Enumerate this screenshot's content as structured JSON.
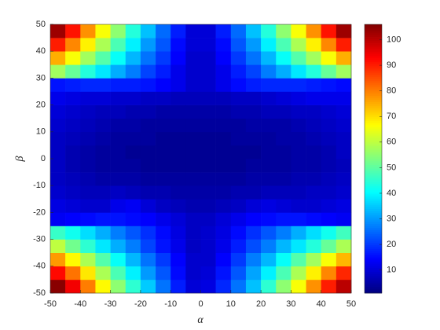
{
  "chart_data": {
    "type": "heatmap",
    "xlabel": "α",
    "ylabel": "β",
    "x": [
      -47.5,
      -42.5,
      -37.5,
      -32.5,
      -27.5,
      -22.5,
      -17.5,
      -12.5,
      -7.5,
      -2.5,
      2.5,
      7.5,
      12.5,
      17.5,
      22.5,
      27.5,
      32.5,
      37.5,
      42.5,
      47.5
    ],
    "y": [
      -47.5,
      -42.5,
      -37.5,
      -32.5,
      -27.5,
      -22.5,
      -17.5,
      -12.5,
      -7.5,
      -2.5,
      2.5,
      7.5,
      12.5,
      17.5,
      22.5,
      27.5,
      32.5,
      37.5,
      42.5,
      47.5
    ],
    "z": [
      [
        105,
        94,
        80,
        67,
        55,
        45,
        35,
        26,
        17,
        10,
        11,
        18,
        26,
        34,
        45,
        55,
        66,
        78,
        90,
        100
      ],
      [
        92,
        81,
        69,
        58,
        48,
        39,
        30,
        23,
        15,
        9,
        10,
        16,
        23,
        31,
        39,
        48,
        58,
        68,
        79,
        89
      ],
      [
        77,
        67,
        58,
        49,
        41,
        33,
        26,
        20,
        14,
        9,
        9,
        14,
        20,
        27,
        33,
        41,
        49,
        57,
        66,
        74
      ],
      [
        60,
        52,
        45,
        38,
        32,
        27,
        21,
        16,
        12,
        8,
        9,
        12,
        17,
        22,
        27,
        33,
        38,
        44,
        51,
        58
      ],
      [
        46,
        42,
        37,
        32,
        27,
        23,
        19,
        15,
        11,
        8,
        9,
        11,
        15,
        19,
        23,
        27,
        32,
        37,
        42,
        47
      ],
      [
        13,
        14,
        15,
        16,
        16,
        15,
        14,
        12,
        10,
        8,
        8,
        10,
        12,
        14,
        15,
        16,
        16,
        15,
        14,
        13
      ],
      [
        11,
        10,
        9,
        9,
        12,
        13,
        10,
        8,
        7,
        6,
        6,
        7,
        8,
        10,
        11,
        10,
        9,
        9,
        10,
        11
      ],
      [
        9,
        8,
        7,
        7,
        8,
        7,
        6,
        6,
        5,
        5,
        5,
        5,
        6,
        6,
        7,
        7,
        7,
        8,
        8,
        9
      ],
      [
        8,
        7,
        6,
        5,
        5,
        5,
        4,
        4,
        4,
        4,
        4,
        4,
        4,
        5,
        5,
        5,
        6,
        6,
        7,
        8
      ],
      [
        8,
        6,
        5,
        4,
        4,
        4,
        3,
        3,
        3,
        3,
        3,
        3,
        3,
        4,
        4,
        4,
        5,
        5,
        6,
        7
      ],
      [
        8,
        6,
        5,
        4,
        4,
        3,
        3,
        3,
        3,
        3,
        3,
        3,
        3,
        3,
        4,
        4,
        5,
        5,
        6,
        8
      ],
      [
        8,
        7,
        6,
        5,
        4,
        4,
        4,
        3,
        3,
        3,
        3,
        3,
        4,
        4,
        4,
        5,
        5,
        6,
        7,
        8
      ],
      [
        9,
        8,
        7,
        6,
        5,
        5,
        4,
        4,
        4,
        4,
        4,
        4,
        4,
        5,
        5,
        5,
        6,
        7,
        8,
        9
      ],
      [
        10,
        9,
        8,
        7,
        7,
        6,
        6,
        5,
        5,
        5,
        5,
        5,
        6,
        6,
        7,
        7,
        8,
        8,
        9,
        10
      ],
      [
        12,
        11,
        10,
        10,
        9,
        9,
        8,
        8,
        7,
        7,
        7,
        7,
        8,
        8,
        9,
        10,
        11,
        12,
        12,
        12
      ],
      [
        16,
        17,
        18,
        18,
        17,
        17,
        16,
        14,
        12,
        9,
        9,
        12,
        15,
        17,
        18,
        18,
        18,
        17,
        16,
        15
      ],
      [
        57,
        51,
        44,
        38,
        32,
        27,
        21,
        17,
        12,
        9,
        9,
        12,
        17,
        21,
        27,
        32,
        38,
        44,
        51,
        57
      ],
      [
        75,
        66,
        57,
        49,
        41,
        33,
        26,
        20,
        14,
        9,
        9,
        14,
        20,
        26,
        33,
        41,
        49,
        57,
        66,
        75
      ],
      [
        90,
        79,
        68,
        58,
        48,
        39,
        30,
        23,
        15,
        10,
        10,
        15,
        23,
        30,
        39,
        48,
        58,
        68,
        79,
        90
      ],
      [
        103,
        91,
        78,
        66,
        55,
        44,
        34,
        25,
        17,
        10,
        10,
        17,
        25,
        34,
        44,
        55,
        66,
        78,
        91,
        103
      ]
    ],
    "xlim": [
      -50,
      50
    ],
    "xticks": [
      -50,
      -40,
      -30,
      -20,
      -10,
      0,
      10,
      20,
      30,
      40,
      50
    ],
    "ylim": [
      -50,
      50
    ],
    "yticks": [
      -50,
      -40,
      -30,
      -20,
      -10,
      0,
      10,
      20,
      30,
      40,
      50
    ],
    "colormap": "jet",
    "clim": [
      1,
      106
    ],
    "cticks": [
      10,
      20,
      30,
      40,
      50,
      60,
      70,
      80,
      90,
      100
    ]
  }
}
